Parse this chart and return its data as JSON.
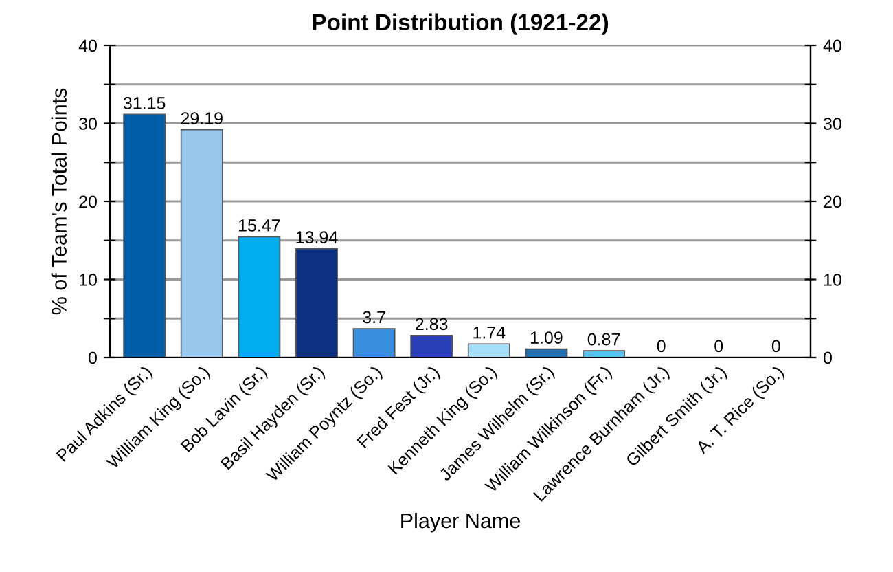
{
  "chart_data": {
    "type": "bar",
    "title": "Point Distribution (1921-22)",
    "xlabel": "Player Name",
    "ylabel": "% of Team's Total Points",
    "categories": [
      "Paul Adkins (Sr.)",
      "William King (So.)",
      "Bob Lavin (Sr.)",
      "Basil Hayden (Sr.)",
      "William Poyntz (So.)",
      "Fred Fest (Jr.)",
      "Kenneth King (So.)",
      "James Wilhelm (Sr.)",
      "William Wilkinson (Fr.)",
      "Lawrence Burnham (Jr.)",
      "Gilbert Smith (Jr.)",
      "A. T. Rice (So.)"
    ],
    "values": [
      31.15,
      29.19,
      15.47,
      13.94,
      3.7,
      2.83,
      1.74,
      1.09,
      0.87,
      0,
      0,
      0
    ],
    "colors": [
      "#005ea8",
      "#99c8ee",
      "#00adee",
      "#0d3080",
      "#3a8ee0",
      "#2a3fb8",
      "#a5e0f8",
      "#1f6fb0",
      "#57c0f0",
      "#0060a8",
      "#99c8ee",
      "#00adee"
    ],
    "data_labels": true,
    "ylim": [
      0,
      40
    ],
    "yticks": [
      0,
      {
        "value": 5,
        "label": null
      },
      10,
      {
        "value": 15,
        "label": null
      },
      20,
      {
        "value": 25,
        "label": null
      },
      30,
      {
        "value": 35,
        "label": null
      },
      40
    ],
    "y2lim": [
      0,
      40
    ],
    "y2ticks": [
      0,
      {
        "value": 5,
        "label": null
      },
      10,
      {
        "value": 15,
        "label": null
      },
      20,
      {
        "value": 25,
        "label": null
      },
      30,
      {
        "value": 35,
        "label": null
      },
      40
    ],
    "grid": "y",
    "legend": false
  }
}
